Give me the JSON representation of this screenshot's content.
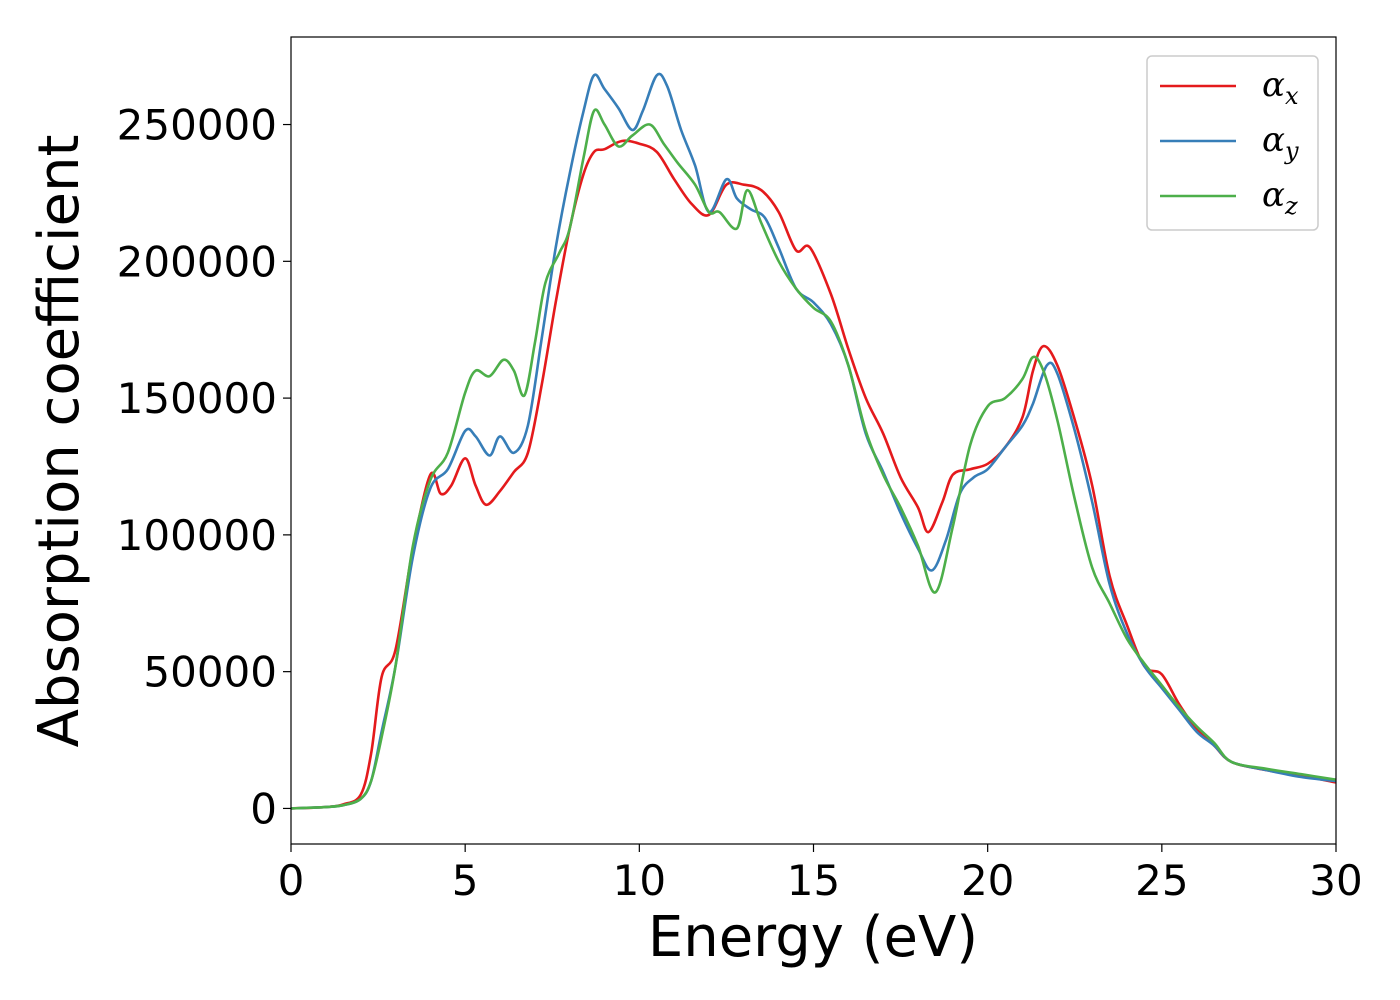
{
  "chart_data": {
    "type": "line",
    "title": "",
    "xlabel": "Energy (eV)",
    "ylabel": "Absorption coefficient",
    "xlim": [
      0,
      30
    ],
    "ylim": [
      -13000,
      282000
    ],
    "xticks": [
      0,
      5,
      10,
      15,
      20,
      25,
      30
    ],
    "xtick_labels": [
      "0",
      "5",
      "10",
      "15",
      "20",
      "25",
      "30"
    ],
    "yticks": [
      0,
      50000,
      100000,
      150000,
      200000,
      250000
    ],
    "ytick_labels": [
      "0",
      "50000",
      "100000",
      "150000",
      "200000",
      "250000"
    ],
    "grid": false,
    "legend_position": "top-right",
    "series": [
      {
        "name": "α_x",
        "base": "α",
        "sub": "x",
        "color": "#e41a1c",
        "points": [
          [
            0,
            0
          ],
          [
            1,
            500
          ],
          [
            1.5,
            1500
          ],
          [
            2,
            5000
          ],
          [
            2.3,
            20000
          ],
          [
            2.6,
            48000
          ],
          [
            3,
            58000
          ],
          [
            3.5,
            95000
          ],
          [
            4,
            122000
          ],
          [
            4.3,
            115000
          ],
          [
            4.6,
            118000
          ],
          [
            5,
            128000
          ],
          [
            5.3,
            118000
          ],
          [
            5.6,
            111000
          ],
          [
            6,
            116000
          ],
          [
            6.4,
            123000
          ],
          [
            6.8,
            130000
          ],
          [
            7.2,
            155000
          ],
          [
            7.6,
            185000
          ],
          [
            8,
            212000
          ],
          [
            8.4,
            232000
          ],
          [
            8.7,
            240000
          ],
          [
            9,
            241000
          ],
          [
            9.5,
            244000
          ],
          [
            10,
            243000
          ],
          [
            10.5,
            240000
          ],
          [
            11,
            230000
          ],
          [
            11.5,
            221000
          ],
          [
            12,
            217000
          ],
          [
            12.5,
            228000
          ],
          [
            13,
            228000
          ],
          [
            13.5,
            226000
          ],
          [
            14,
            218000
          ],
          [
            14.5,
            204000
          ],
          [
            14.9,
            205000
          ],
          [
            15.5,
            188000
          ],
          [
            16,
            168000
          ],
          [
            16.5,
            150000
          ],
          [
            17,
            137000
          ],
          [
            17.5,
            121000
          ],
          [
            18,
            110000
          ],
          [
            18.3,
            101000
          ],
          [
            18.7,
            112000
          ],
          [
            19,
            122000
          ],
          [
            19.5,
            124000
          ],
          [
            20,
            126000
          ],
          [
            20.5,
            132000
          ],
          [
            21,
            143000
          ],
          [
            21.3,
            160000
          ],
          [
            21.6,
            169000
          ],
          [
            22,
            162000
          ],
          [
            22.5,
            142000
          ],
          [
            23,
            118000
          ],
          [
            23.5,
            85000
          ],
          [
            24,
            67000
          ],
          [
            24.5,
            52000
          ],
          [
            25,
            49000
          ],
          [
            25.5,
            38000
          ],
          [
            26,
            29000
          ],
          [
            26.5,
            23000
          ],
          [
            27,
            17000
          ],
          [
            28,
            14000
          ],
          [
            29,
            12000
          ],
          [
            30,
            9500
          ]
        ]
      },
      {
        "name": "α_y",
        "base": "α",
        "sub": "y",
        "color": "#377eb8",
        "points": [
          [
            0,
            0
          ],
          [
            1,
            500
          ],
          [
            1.5,
            1200
          ],
          [
            2,
            3500
          ],
          [
            2.3,
            10000
          ],
          [
            2.6,
            28000
          ],
          [
            3,
            52000
          ],
          [
            3.5,
            92000
          ],
          [
            4,
            117000
          ],
          [
            4.5,
            124000
          ],
          [
            5,
            138000
          ],
          [
            5.3,
            136000
          ],
          [
            5.7,
            129000
          ],
          [
            6,
            136000
          ],
          [
            6.4,
            130000
          ],
          [
            6.8,
            140000
          ],
          [
            7.2,
            172000
          ],
          [
            7.6,
            205000
          ],
          [
            8,
            232000
          ],
          [
            8.4,
            255000
          ],
          [
            8.7,
            268000
          ],
          [
            9,
            263000
          ],
          [
            9.4,
            256000
          ],
          [
            9.8,
            248000
          ],
          [
            10.1,
            255000
          ],
          [
            10.5,
            268000
          ],
          [
            10.8,
            264000
          ],
          [
            11.2,
            248000
          ],
          [
            11.6,
            235000
          ],
          [
            12,
            218000
          ],
          [
            12.5,
            230000
          ],
          [
            12.8,
            223000
          ],
          [
            13.2,
            219000
          ],
          [
            13.6,
            216000
          ],
          [
            14,
            205000
          ],
          [
            14.5,
            190000
          ],
          [
            15,
            185000
          ],
          [
            15.5,
            177000
          ],
          [
            16,
            162000
          ],
          [
            16.5,
            137000
          ],
          [
            17,
            123000
          ],
          [
            17.5,
            108000
          ],
          [
            18,
            95000
          ],
          [
            18.4,
            87000
          ],
          [
            18.8,
            98000
          ],
          [
            19.2,
            115000
          ],
          [
            19.6,
            121000
          ],
          [
            20,
            124000
          ],
          [
            20.5,
            132000
          ],
          [
            21,
            140000
          ],
          [
            21.3,
            148000
          ],
          [
            21.7,
            162000
          ],
          [
            22,
            159000
          ],
          [
            22.5,
            138000
          ],
          [
            23,
            112000
          ],
          [
            23.5,
            82000
          ],
          [
            24,
            64000
          ],
          [
            24.5,
            52000
          ],
          [
            25,
            44000
          ],
          [
            25.5,
            36000
          ],
          [
            26,
            28000
          ],
          [
            26.5,
            23000
          ],
          [
            27,
            17000
          ],
          [
            28,
            14000
          ],
          [
            29,
            11500
          ],
          [
            30,
            10000
          ]
        ]
      },
      {
        "name": "α_z",
        "base": "α",
        "sub": "z",
        "color": "#4daf4a",
        "points": [
          [
            0,
            0
          ],
          [
            1,
            500
          ],
          [
            1.5,
            1200
          ],
          [
            2,
            3500
          ],
          [
            2.3,
            10000
          ],
          [
            2.6,
            26000
          ],
          [
            3,
            52000
          ],
          [
            3.5,
            96000
          ],
          [
            4,
            120000
          ],
          [
            4.5,
            130000
          ],
          [
            5,
            152000
          ],
          [
            5.3,
            160000
          ],
          [
            5.7,
            158000
          ],
          [
            6.1,
            164000
          ],
          [
            6.4,
            160000
          ],
          [
            6.7,
            151000
          ],
          [
            7,
            170000
          ],
          [
            7.3,
            192000
          ],
          [
            7.7,
            203000
          ],
          [
            8,
            212000
          ],
          [
            8.4,
            238000
          ],
          [
            8.7,
            255000
          ],
          [
            9,
            250000
          ],
          [
            9.4,
            242000
          ],
          [
            9.8,
            246000
          ],
          [
            10.3,
            250000
          ],
          [
            10.7,
            243000
          ],
          [
            11.1,
            236000
          ],
          [
            11.6,
            228000
          ],
          [
            12,
            218000
          ],
          [
            12.3,
            218000
          ],
          [
            12.8,
            212000
          ],
          [
            13.1,
            226000
          ],
          [
            13.5,
            214000
          ],
          [
            14,
            200000
          ],
          [
            14.5,
            190000
          ],
          [
            15,
            183000
          ],
          [
            15.5,
            178000
          ],
          [
            16,
            162000
          ],
          [
            16.5,
            138000
          ],
          [
            17,
            122000
          ],
          [
            17.5,
            110000
          ],
          [
            18,
            96000
          ],
          [
            18.5,
            79000
          ],
          [
            19,
            103000
          ],
          [
            19.5,
            133000
          ],
          [
            20,
            147000
          ],
          [
            20.5,
            150000
          ],
          [
            21,
            157000
          ],
          [
            21.3,
            165000
          ],
          [
            21.6,
            160000
          ],
          [
            22,
            142000
          ],
          [
            22.5,
            113000
          ],
          [
            23,
            88000
          ],
          [
            23.5,
            75000
          ],
          [
            24,
            62000
          ],
          [
            24.5,
            53000
          ],
          [
            25,
            45000
          ],
          [
            25.5,
            37000
          ],
          [
            26,
            30000
          ],
          [
            26.5,
            24000
          ],
          [
            27,
            17000
          ],
          [
            28,
            14500
          ],
          [
            29,
            12500
          ],
          [
            30,
            10500
          ]
        ]
      }
    ]
  }
}
